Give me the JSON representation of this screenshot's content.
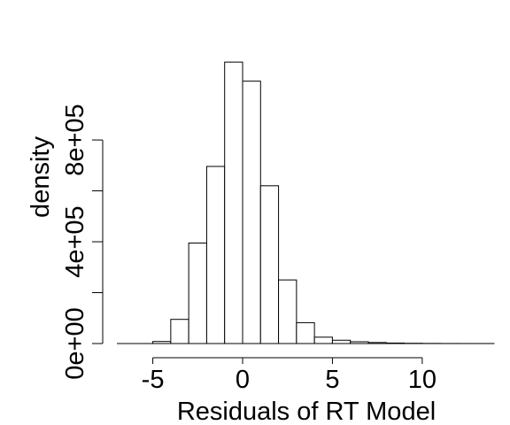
{
  "chart_data": {
    "type": "bar",
    "title": "",
    "xlabel": "Residuals of RT Model",
    "ylabel": "density",
    "bins": [
      {
        "x0": -5,
        "x1": -4,
        "value": 8000
      },
      {
        "x0": -4,
        "x1": -3,
        "value": 95000
      },
      {
        "x0": -3,
        "x1": -2,
        "value": 395000
      },
      {
        "x0": -2,
        "x1": -1,
        "value": 696000
      },
      {
        "x0": -1,
        "x1": 0,
        "value": 1106000
      },
      {
        "x0": 0,
        "x1": 1,
        "value": 1031000
      },
      {
        "x0": 1,
        "x1": 2,
        "value": 620000
      },
      {
        "x0": 2,
        "x1": 3,
        "value": 250000
      },
      {
        "x0": 3,
        "x1": 4,
        "value": 82000
      },
      {
        "x0": 4,
        "x1": 5,
        "value": 25000
      },
      {
        "x0": 5,
        "x1": 6,
        "value": 13000
      },
      {
        "x0": 6,
        "x1": 7,
        "value": 7000
      },
      {
        "x0": 7,
        "x1": 8,
        "value": 4000
      },
      {
        "x0": 8,
        "x1": 9,
        "value": 2000
      },
      {
        "x0": 9,
        "x1": 10,
        "value": 1000
      },
      {
        "x0": 10,
        "x1": 11,
        "value": 500
      },
      {
        "x0": 11,
        "x1": 12,
        "value": 250
      },
      {
        "x0": 12,
        "x1": 13,
        "value": 150
      },
      {
        "x0": 13,
        "x1": 14,
        "value": 100
      }
    ],
    "xlim": [
      -7,
      14
    ],
    "ylim": [
      0,
      1350000
    ],
    "xticks": [
      -5,
      0,
      5,
      10
    ],
    "xtick_labels": [
      "-5",
      "0",
      "5",
      "10"
    ],
    "yticks": [
      0,
      200000,
      400000,
      600000,
      800000
    ],
    "ytick_labels": [
      {
        "value": 0,
        "label": "0e+00"
      },
      {
        "value": 400000,
        "label": "4e+05"
      },
      {
        "value": 800000,
        "label": "8e+05"
      }
    ],
    "grid": false,
    "legend": "none"
  }
}
